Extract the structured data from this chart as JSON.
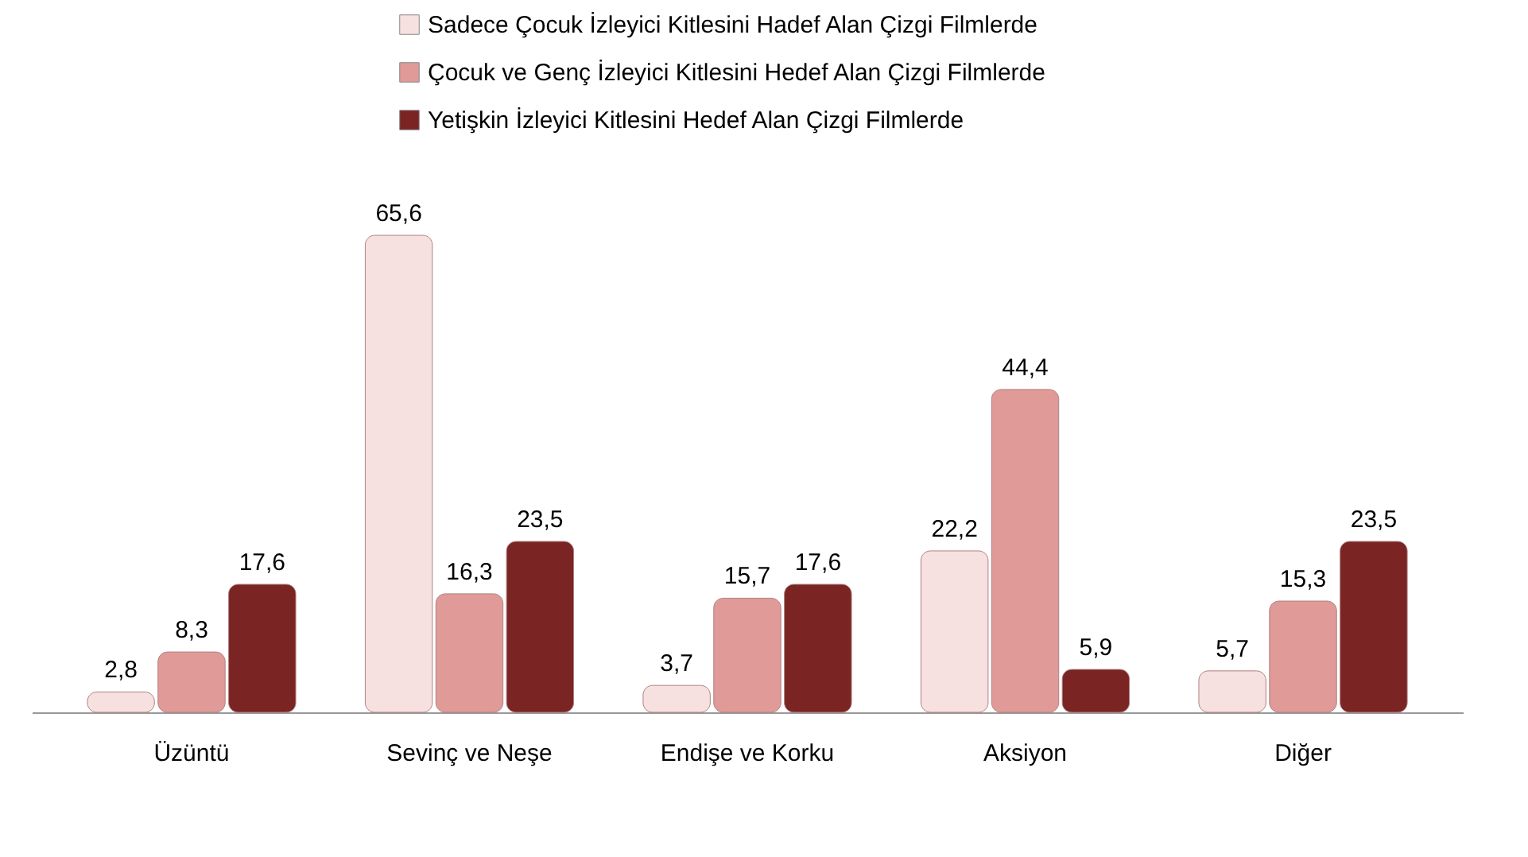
{
  "chart_data": {
    "type": "bar",
    "categories": [
      "Üzüntü",
      "Sevinç ve Neşe",
      "Endişe ve Korku",
      "Aksiyon",
      "Diğer"
    ],
    "series": [
      {
        "name": "Sadece Çocuk İzleyici Kitlesini Hadef Alan Çizgi Filmlerde",
        "color": "#f7e0e0",
        "values": [
          2.8,
          65.6,
          3.7,
          22.2,
          5.7
        ],
        "value_labels": [
          "2,8",
          "65,6",
          "3,7",
          "22,2",
          "5,7"
        ]
      },
      {
        "name": "Çocuk ve Genç İzleyici Kitlesini Hedef Alan Çizgi Filmlerde",
        "color": "#e09a98",
        "values": [
          8.3,
          16.3,
          15.7,
          44.4,
          15.3
        ],
        "value_labels": [
          "8,3",
          "16,3",
          "15,7",
          "44,4",
          "15,3"
        ]
      },
      {
        "name": "Yetişkin İzleyici Kitlesini Hedef Alan Çizgi Filmlerde",
        "color": "#7a2424",
        "values": [
          17.6,
          23.5,
          17.6,
          5.9,
          23.5
        ],
        "value_labels": [
          "17,6",
          "23,5",
          "17,6",
          "5,9",
          "23,5"
        ]
      }
    ],
    "legend": "top",
    "grid": false
  }
}
